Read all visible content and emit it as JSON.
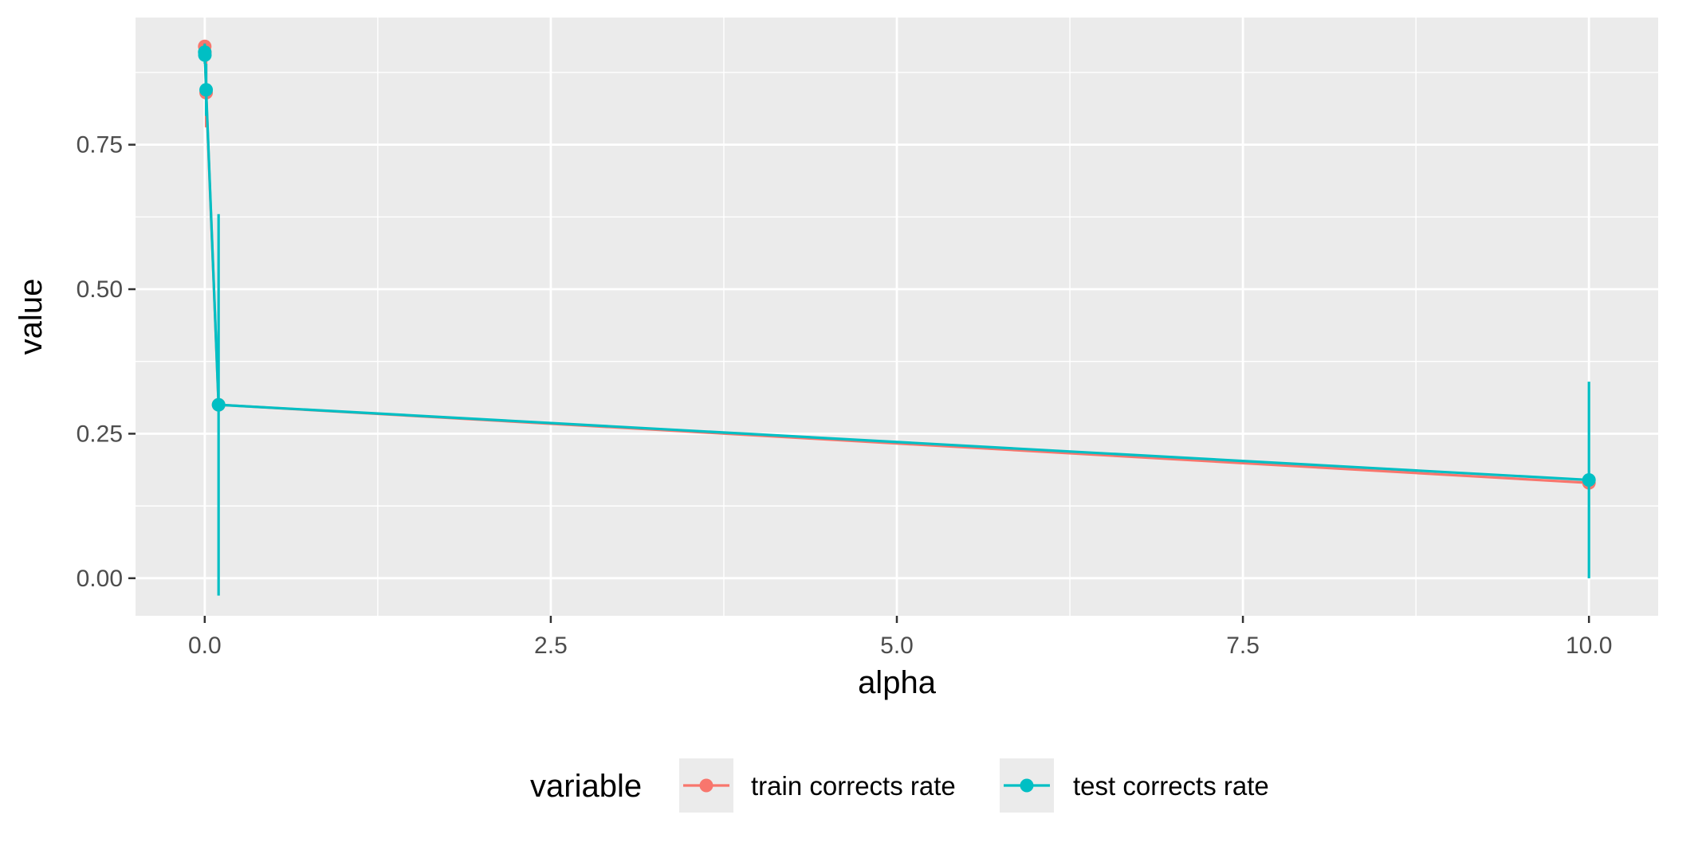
{
  "chart_data": {
    "type": "line",
    "xlabel": "alpha",
    "ylabel": "value",
    "xlim": [
      -0.5,
      10.5
    ],
    "ylim": [
      -0.065,
      0.97
    ],
    "x_ticks": [
      0,
      2.5,
      5,
      7.5,
      10
    ],
    "x_tick_labels": [
      "0.0",
      "2.5",
      "5.0",
      "7.5",
      "10.0"
    ],
    "y_ticks": [
      0,
      0.25,
      0.5,
      0.75
    ],
    "y_tick_labels": [
      "0.00",
      "0.25",
      "0.50",
      "0.75"
    ],
    "grid": true,
    "legend": {
      "title": "variable",
      "position": "bottom"
    },
    "series": [
      {
        "name": "train corrects rate",
        "color": "#F8766D",
        "x": [
          0,
          0.001,
          0.01,
          0.1,
          10
        ],
        "values": [
          0.92,
          0.91,
          0.84,
          0.3,
          0.165
        ],
        "err_low": [
          0.91,
          0.9,
          0.78,
          0.3,
          0.165
        ],
        "err_high": [
          0.93,
          0.92,
          0.9,
          0.3,
          0.165
        ]
      },
      {
        "name": "test corrects rate",
        "color": "#00BFC4",
        "x": [
          0,
          0.001,
          0.01,
          0.1,
          10
        ],
        "values": [
          0.91,
          0.905,
          0.845,
          0.3,
          0.17
        ],
        "err_low": [
          0.895,
          0.89,
          0.8,
          -0.03,
          0.0
        ],
        "err_high": [
          0.925,
          0.92,
          0.89,
          0.63,
          0.34
        ]
      }
    ]
  }
}
